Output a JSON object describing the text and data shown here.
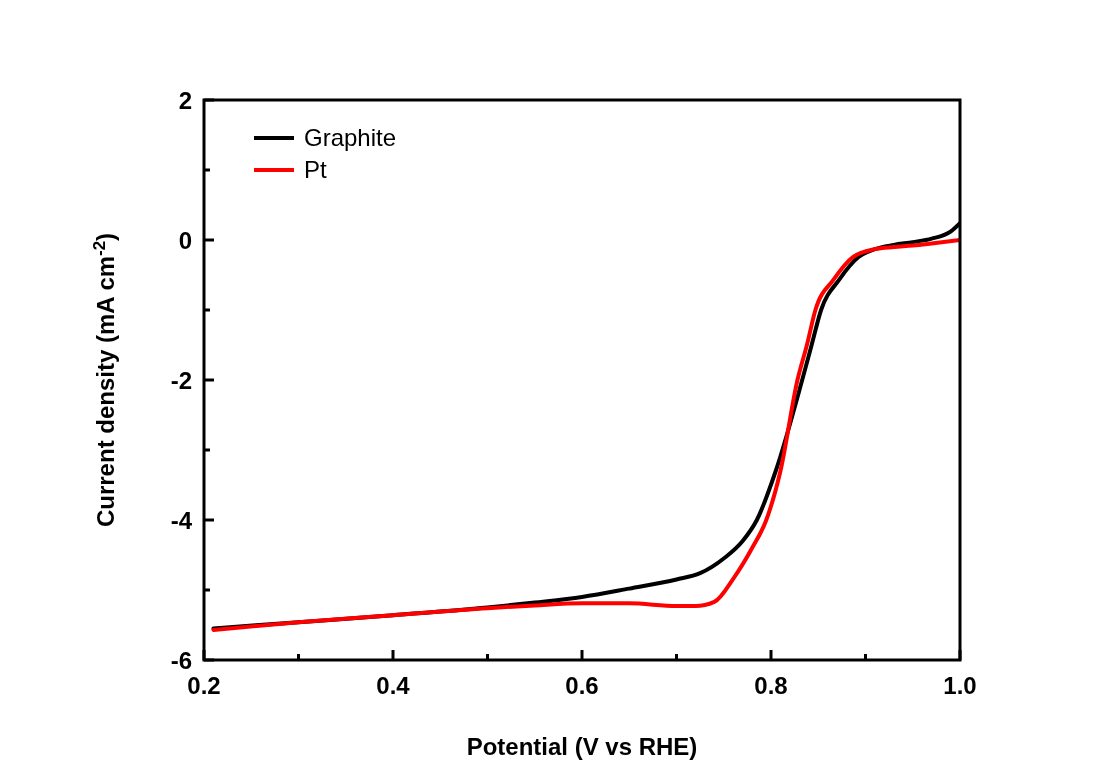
{
  "chart_data": {
    "type": "line",
    "xlabel": "Potential (V vs RHE)",
    "ylabel": "Current density (mA cm$^{-2}$)",
    "legend": "top left",
    "marker": "none",
    "line_style": "solid",
    "xlim": [
      0.2,
      1.0
    ],
    "ylim": [
      -6,
      2
    ],
    "xticks": [
      {
        "value": 0.2,
        "label": "0.2"
      },
      {
        "value": 0.3,
        "label": null
      },
      {
        "value": 0.4,
        "label": "0.4"
      },
      {
        "value": 0.5,
        "label": null
      },
      {
        "value": 0.6,
        "label": "0.6"
      },
      {
        "value": 0.7,
        "label": null
      },
      {
        "value": 0.8,
        "label": "0.8"
      },
      {
        "value": 0.9,
        "label": null
      },
      {
        "value": 1.0,
        "label": "1.0"
      }
    ],
    "yticks": [
      -6,
      {
        "value": -5,
        "label": null
      },
      -4,
      {
        "value": -3,
        "label": null
      },
      -2,
      {
        "value": -1,
        "label": null
      },
      0,
      {
        "value": 1,
        "label": null
      },
      2
    ],
    "series": [
      {
        "name": "Graphite",
        "color": "#000000",
        "x": [
          0.21,
          0.3,
          0.4,
          0.5,
          0.55,
          0.6,
          0.65,
          0.7,
          0.725,
          0.75,
          0.77,
          0.785,
          0.805,
          0.833,
          0.843,
          0.853,
          0.872,
          0.893,
          0.91,
          0.93,
          0.95,
          0.97,
          0.99,
          1.0
        ],
        "values": [
          -5.55,
          -5.46,
          -5.36,
          -5.25,
          -5.18,
          -5.1,
          -4.98,
          -4.85,
          -4.76,
          -4.55,
          -4.3,
          -4.0,
          -3.3,
          -2.0,
          -1.5,
          -1.0,
          -0.57,
          -0.24,
          -0.13,
          -0.07,
          -0.03,
          0.02,
          0.12,
          0.24
        ]
      },
      {
        "name": "Pt",
        "color": "#ff0000",
        "x": [
          0.21,
          0.3,
          0.4,
          0.5,
          0.55,
          0.6,
          0.65,
          0.7,
          0.72,
          0.74,
          0.76,
          0.78,
          0.795,
          0.81,
          0.828,
          0.838,
          0.847,
          0.866,
          0.887,
          0.91,
          0.93,
          0.95,
          0.97,
          1.0
        ],
        "values": [
          -5.57,
          -5.46,
          -5.36,
          -5.26,
          -5.22,
          -5.19,
          -5.19,
          -5.23,
          -5.23,
          -5.17,
          -4.84,
          -4.4,
          -4.0,
          -3.3,
          -2.0,
          -1.5,
          -1.0,
          -0.57,
          -0.24,
          -0.13,
          -0.1,
          -0.08,
          -0.05,
          0.0
        ]
      }
    ]
  }
}
